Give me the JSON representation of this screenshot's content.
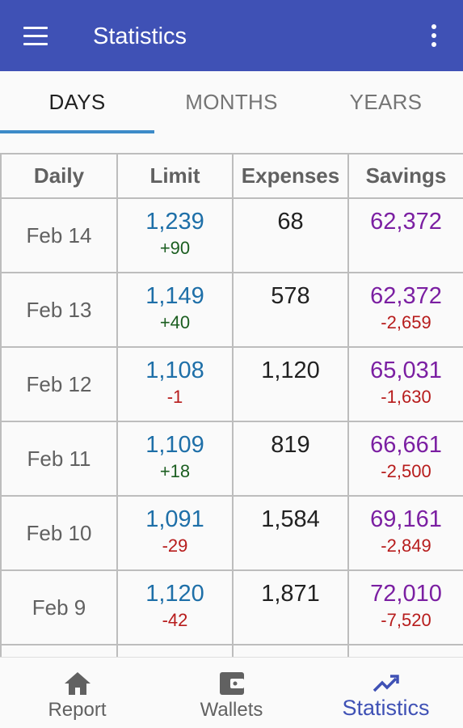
{
  "app_bar": {
    "title": "Statistics",
    "menu_icon": "hamburger-menu-icon",
    "more_icon": "more-vertical-icon",
    "color": "#3f51b5"
  },
  "tabs": [
    {
      "label": "DAYS",
      "active": true
    },
    {
      "label": "MONTHS",
      "active": false
    },
    {
      "label": "YEARS",
      "active": false
    }
  ],
  "table": {
    "headers": [
      "Daily",
      "Limit",
      "Expenses",
      "Savings"
    ],
    "rows": [
      {
        "date": "Feb 14",
        "limit": "1,239",
        "limit_change": "+90",
        "expenses": "68",
        "savings": "62,372",
        "savings_change": ""
      },
      {
        "date": "Feb 13",
        "limit": "1,149",
        "limit_change": "+40",
        "expenses": "578",
        "savings": "62,372",
        "savings_change": "-2,659"
      },
      {
        "date": "Feb 12",
        "limit": "1,108",
        "limit_change": "-1",
        "expenses": "1,120",
        "savings": "65,031",
        "savings_change": "-1,630"
      },
      {
        "date": "Feb 11",
        "limit": "1,109",
        "limit_change": "+18",
        "expenses": "819",
        "savings": "66,661",
        "savings_change": "-2,500"
      },
      {
        "date": "Feb 10",
        "limit": "1,091",
        "limit_change": "-29",
        "expenses": "1,584",
        "savings": "69,161",
        "savings_change": "-2,849"
      },
      {
        "date": "Feb 9",
        "limit": "1,120",
        "limit_change": "-42",
        "expenses": "1,871",
        "savings": "72,010",
        "savings_change": "-7,520"
      },
      {
        "date": "",
        "limit": "",
        "limit_change": "",
        "expenses": "",
        "savings": "",
        "savings_change": ""
      }
    ]
  },
  "bottom_nav": {
    "items": [
      {
        "label": "Report",
        "icon": "home-icon",
        "active": false
      },
      {
        "label": "Wallets",
        "icon": "wallet-icon",
        "active": false
      },
      {
        "label": "Statistics",
        "icon": "trending-up-icon",
        "active": true
      }
    ]
  },
  "colors": {
    "limit": "#1e6fa8",
    "savings": "#7b1fa2",
    "positive": "#1b5e20",
    "negative": "#b71c1c",
    "accent": "#3f51b5"
  }
}
